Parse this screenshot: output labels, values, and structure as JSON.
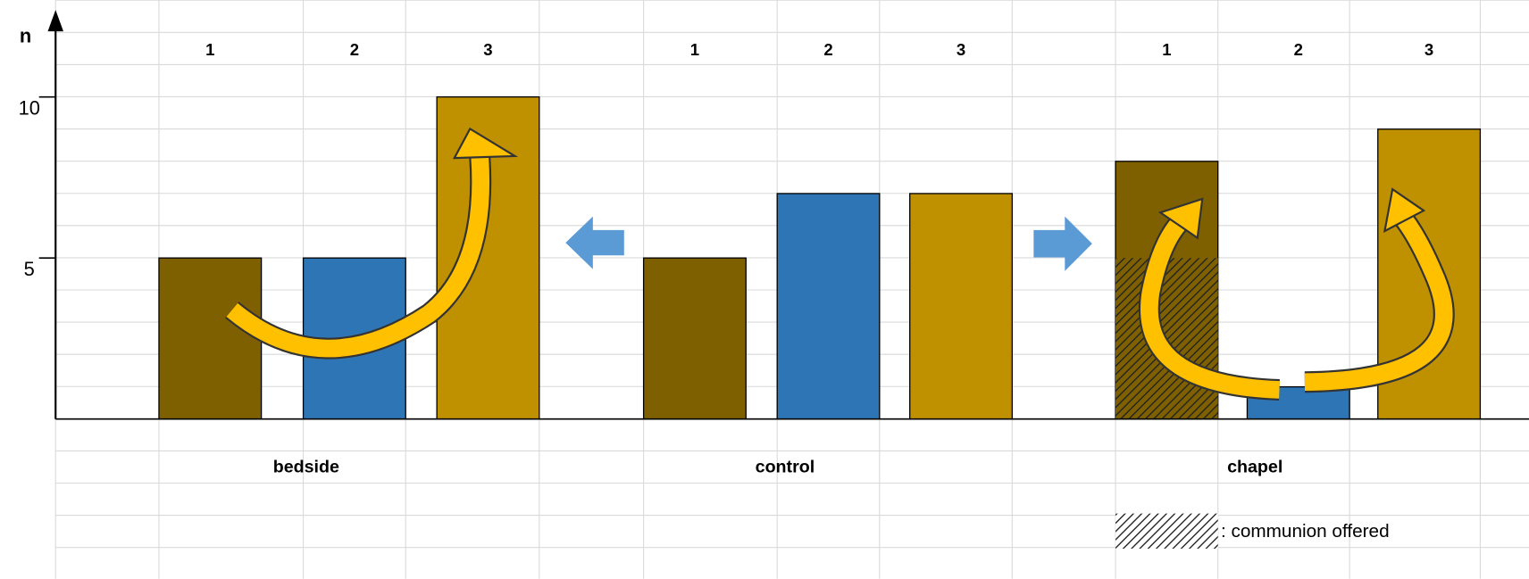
{
  "chart_data": {
    "type": "bar",
    "y_label": "n",
    "ylim": [
      0,
      12.7
    ],
    "yticks": [
      5,
      10
    ],
    "colors": [
      "#7f6000",
      "#2e75b6",
      "#bf9000"
    ],
    "groups": [
      {
        "name": "bedside",
        "categories": [
          "1",
          "2",
          "3"
        ],
        "values": [
          5,
          5,
          10
        ]
      },
      {
        "name": "control",
        "categories": [
          "1",
          "2",
          "3"
        ],
        "values": [
          5,
          7,
          7
        ]
      },
      {
        "name": "chapel",
        "categories": [
          "1",
          "2",
          "3"
        ],
        "values": [
          8,
          1,
          9
        ],
        "hatched_values": [
          5,
          null,
          null
        ]
      }
    ],
    "hatch_legend": ": communion offered"
  }
}
